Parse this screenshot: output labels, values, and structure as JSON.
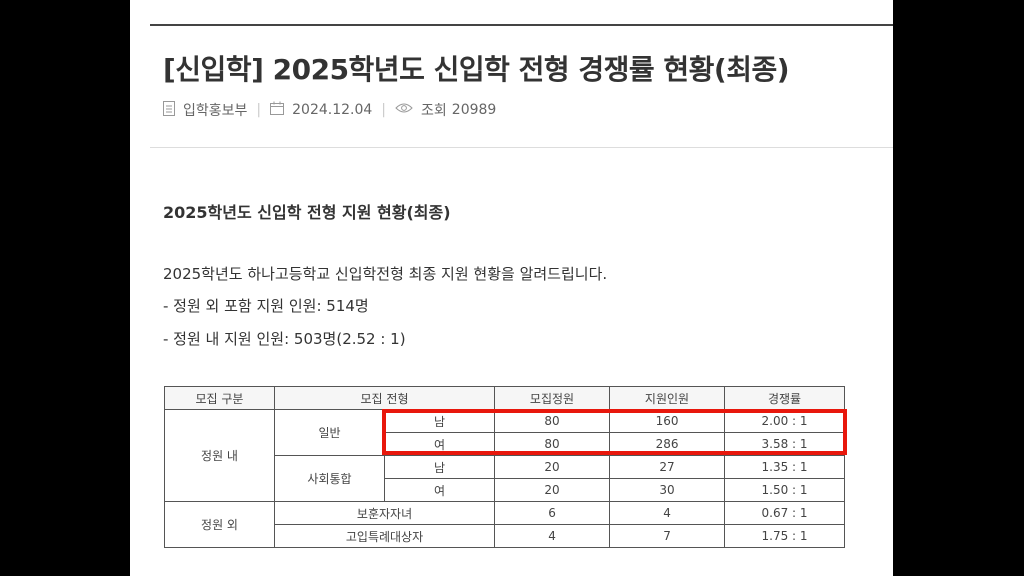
{
  "post": {
    "title": "[신입학] 2025학년도 신입학 전형 경쟁률 현황(최종)",
    "author": "입학홍보부",
    "date": "2024.12.04",
    "views_label": "조회",
    "views": "20989"
  },
  "content": {
    "section_title": "2025학년도 신입학 전형 지원 현황(최종)",
    "intro_line": "2025학년도 하나고등학교 신입학전형 최종 지원 현황을 알려드립니다.",
    "bullet_1": "- 정원 외 포함 지원 인원: 514명",
    "bullet_2": "- 정원 내 지원 인원: 503명(2.52 : 1)"
  },
  "table": {
    "headers": [
      "모집 구분",
      "모집 전형",
      "모집정원",
      "지원인원",
      "경쟁률"
    ],
    "group_in": "정원 내",
    "group_out": "정원 외",
    "type_general": "일반",
    "type_social": "사회통합",
    "rows": {
      "general_m": {
        "gender": "남",
        "quota": "80",
        "applicants": "160",
        "ratio": "2.00 : 1"
      },
      "general_f": {
        "gender": "여",
        "quota": "80",
        "applicants": "286",
        "ratio": "3.58 : 1"
      },
      "social_m": {
        "gender": "남",
        "quota": "20",
        "applicants": "27",
        "ratio": "1.35 : 1"
      },
      "social_f": {
        "gender": "여",
        "quota": "20",
        "applicants": "30",
        "ratio": "1.50 : 1"
      },
      "veteran": {
        "type": "보훈자자녀",
        "quota": "6",
        "applicants": "4",
        "ratio": "0.67 : 1"
      },
      "special": {
        "type": "고입특례대상자",
        "quota": "4",
        "applicants": "7",
        "ratio": "1.75 : 1"
      }
    }
  },
  "icons": {
    "author": "document-icon",
    "date": "calendar-icon",
    "views": "eye-icon"
  },
  "colors": {
    "highlight": "#e8170c"
  }
}
